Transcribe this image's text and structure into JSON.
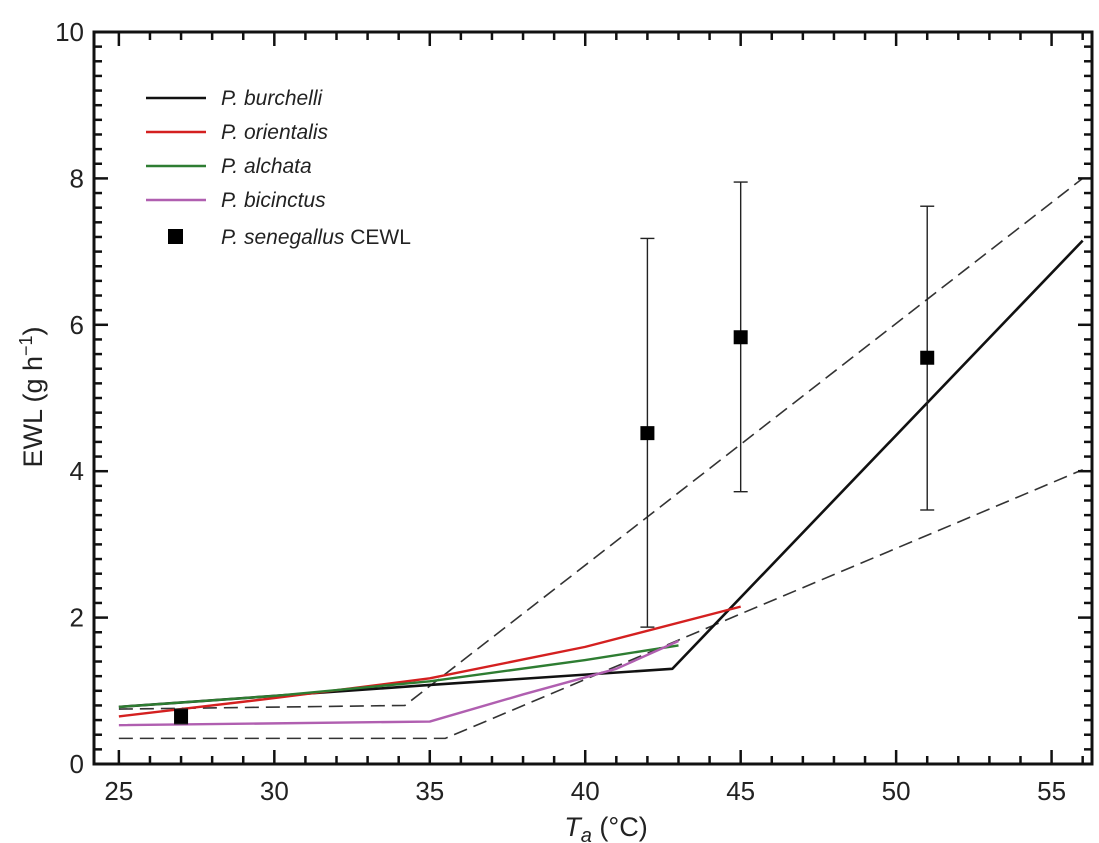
{
  "chart_data": {
    "type": "line",
    "xlabel_main": "T",
    "xlabel_sub": "a",
    "xlabel_unit": " (°C)",
    "ylabel": "EWL (g h",
    "ylabel_sup": "−1",
    "ylabel_close": ")",
    "xlim": [
      24.2,
      56.3
    ],
    "ylim": [
      0,
      10
    ],
    "x_ticks": [
      25,
      30,
      35,
      40,
      45,
      50,
      55
    ],
    "y_ticks": [
      0,
      2,
      4,
      6,
      8,
      10
    ],
    "grid": false,
    "legend_placement": "top-left",
    "series": [
      {
        "name": "P. burchelli",
        "color": "#111111",
        "points": [
          [
            25,
            0.78
          ],
          [
            35,
            1.08
          ],
          [
            42.8,
            1.3
          ],
          [
            56,
            7.15
          ]
        ]
      },
      {
        "name": "P. orientalis",
        "color": "#d42020",
        "points": [
          [
            25,
            0.65
          ],
          [
            30,
            0.9
          ],
          [
            35,
            1.17
          ],
          [
            40,
            1.6
          ],
          [
            45,
            2.15
          ]
        ]
      },
      {
        "name": "P. alchata",
        "color": "#2e7d32",
        "points": [
          [
            25,
            0.78
          ],
          [
            30,
            0.93
          ],
          [
            35,
            1.13
          ],
          [
            40,
            1.42
          ],
          [
            43,
            1.62
          ]
        ]
      },
      {
        "name": "P. bicinctus",
        "color": "#b05fb0",
        "points": [
          [
            25,
            0.53
          ],
          [
            35,
            0.58
          ],
          [
            38,
            0.95
          ],
          [
            41,
            1.3
          ],
          [
            43,
            1.68
          ]
        ]
      }
    ],
    "reference_lines": [
      {
        "points": [
          [
            25,
            0.75
          ],
          [
            34.2,
            0.8
          ],
          [
            56,
            8.0
          ]
        ]
      },
      {
        "points": [
          [
            25,
            0.35
          ],
          [
            35.5,
            0.35
          ],
          [
            56,
            4.02
          ]
        ]
      }
    ],
    "scatter": {
      "name": "P. senegallus",
      "name_suffix": " CEWL",
      "color": "#000000",
      "points": [
        {
          "x": 27,
          "y": 0.65,
          "lo": 0.55,
          "hi": 0.75
        },
        {
          "x": 42,
          "y": 4.52,
          "lo": 1.87,
          "hi": 7.18
        },
        {
          "x": 45,
          "y": 5.83,
          "lo": 3.72,
          "hi": 7.95
        },
        {
          "x": 51,
          "y": 5.55,
          "lo": 3.47,
          "hi": 7.62
        }
      ]
    }
  }
}
